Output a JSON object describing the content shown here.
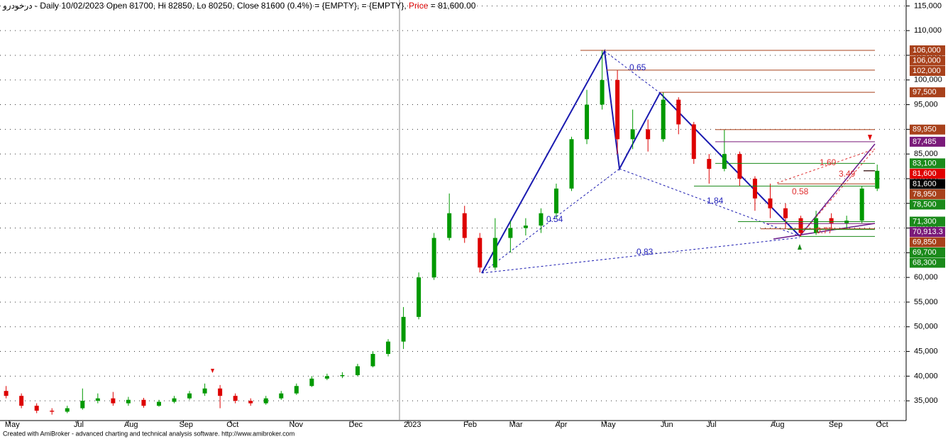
{
  "chart_data": {
    "type": "candlestick",
    "title": "درخودرو - Daily 10/02/2023 Open 81700, Hi 82850, Lo 80250, Close 81600 (0.4%)    = {EMPTY},    = {EMPTY}, ",
    "price_label": "Price",
    "price_text": " = 81,600.00",
    "footer": "Created with AmiBroker - advanced charting and technical analysis software. http://www.amibroker.com",
    "up_color": "#009900",
    "down_color": "#dd0000",
    "grid": true,
    "xlim": [
      0,
      296
    ],
    "ylim": [
      31000,
      116200
    ],
    "xticks": [
      {
        "value": 3,
        "label": "May"
      },
      {
        "value": 25.5,
        "label": "Jul"
      },
      {
        "value": 42,
        "label": "Aug"
      },
      {
        "value": 60,
        "label": "Sep"
      },
      {
        "value": 75.5,
        "label": "Oct"
      },
      {
        "value": 96,
        "label": "Nov"
      },
      {
        "value": 115.5,
        "label": "Dec"
      },
      {
        "value": 133.5,
        "label": "2023"
      },
      {
        "value": 153,
        "label": "Feb"
      },
      {
        "value": 168,
        "label": "Mar"
      },
      {
        "value": 183,
        "label": "Apr"
      },
      {
        "value": 198,
        "label": "May"
      },
      {
        "value": 217.5,
        "label": "Jun"
      },
      {
        "value": 232.5,
        "label": "Jul"
      },
      {
        "value": 253.5,
        "label": "Aug"
      },
      {
        "value": 272.5,
        "label": "Sep"
      },
      {
        "value": 288,
        "label": "Oct"
      }
    ],
    "yticks": [
      {
        "value": 35000,
        "label": "35,000"
      },
      {
        "value": 40000,
        "label": "40,000"
      },
      {
        "value": 45000,
        "label": "45,000"
      },
      {
        "value": 50000,
        "label": "50,000"
      },
      {
        "value": 55000,
        "label": "55,000"
      },
      {
        "value": 60000,
        "label": "60,000"
      },
      {
        "value": 65000,
        "label": "65,000"
      },
      {
        "value": 70000,
        "label": "70,000"
      },
      {
        "value": 75000,
        "label": "75,000"
      },
      {
        "value": 80000,
        "label": "80,000"
      },
      {
        "value": 85000,
        "label": "85,000"
      },
      {
        "value": 90000,
        "label": "90,000"
      },
      {
        "value": 95000,
        "label": "95,000"
      },
      {
        "value": 100000,
        "label": "100,000"
      },
      {
        "value": 105000,
        "label": "105,000"
      },
      {
        "value": 110000,
        "label": "110,000"
      },
      {
        "value": 115000,
        "label": "115,000"
      }
    ],
    "x": [
      2,
      7,
      12,
      17,
      22,
      27,
      32,
      37,
      42,
      47,
      52,
      57,
      62,
      67,
      72,
      77,
      82,
      87,
      92,
      97,
      102,
      107,
      112,
      117,
      122,
      127,
      132,
      137,
      142,
      147,
      152,
      157,
      162,
      167,
      172,
      177,
      182,
      187,
      192,
      197,
      202,
      207,
      212,
      217,
      222,
      227,
      232,
      237,
      242,
      247,
      252,
      257,
      262,
      267,
      272,
      277,
      282,
      287
    ],
    "open": [
      37000,
      36000,
      34000,
      33000,
      32800,
      33500,
      35000,
      35500,
      34500,
      35200,
      34000,
      34800,
      35500,
      36500,
      37500,
      36000,
      35000,
      34500,
      35500,
      36500,
      38000,
      39500,
      40000,
      40200,
      42000,
      44500,
      47000,
      52000,
      60000,
      68000,
      73000,
      68000,
      62000,
      68000,
      70000,
      70500,
      73000,
      78000,
      88000,
      95000,
      100000,
      88000,
      90000,
      88000,
      96000,
      91000,
      84000,
      82000,
      85000,
      80000,
      76000,
      74000,
      72000,
      69000,
      72000,
      71000,
      71500,
      78000
    ],
    "high": [
      38000,
      36500,
      34500,
      33500,
      34000,
      37500,
      36500,
      36800,
      35800,
      35600,
      35200,
      36000,
      37000,
      38500,
      38200,
      36500,
      35500,
      36000,
      37000,
      38500,
      40000,
      40500,
      40800,
      42500,
      45000,
      47500,
      54000,
      61000,
      69000,
      77000,
      74500,
      69000,
      72000,
      71500,
      72000,
      74000,
      79000,
      88500,
      98000,
      106000,
      102000,
      94000,
      92000,
      97500,
      96500,
      91500,
      85000,
      89950,
      85500,
      80500,
      79000,
      75000,
      72500,
      73500,
      73000,
      72500,
      78500,
      82850
    ],
    "low": [
      35500,
      33500,
      32500,
      32200,
      32500,
      33200,
      34500,
      34000,
      34000,
      33600,
      33800,
      34500,
      35200,
      36000,
      33500,
      34500,
      34000,
      34200,
      35200,
      36200,
      37800,
      39200,
      39600,
      40000,
      41800,
      44000,
      45500,
      51500,
      59500,
      67500,
      67000,
      61000,
      61500,
      65000,
      68500,
      69000,
      72000,
      77500,
      87000,
      94000,
      85000,
      86000,
      85500,
      87500,
      89000,
      83000,
      79000,
      81500,
      78500,
      73500,
      72000,
      70000,
      68300,
      68600,
      69700,
      69850,
      71000,
      77500
    ],
    "close": [
      36000,
      34000,
      33000,
      32800,
      33500,
      35000,
      35500,
      34500,
      35200,
      34000,
      34800,
      35500,
      36500,
      37500,
      36000,
      35000,
      34500,
      35500,
      36500,
      38000,
      39500,
      40000,
      40200,
      42000,
      44500,
      47000,
      52000,
      60000,
      68000,
      73000,
      68000,
      62000,
      68000,
      70000,
      70500,
      73000,
      78000,
      88000,
      95000,
      100000,
      88000,
      90000,
      88000,
      96000,
      91000,
      84000,
      82000,
      85000,
      80000,
      76000,
      74000,
      72000,
      69000,
      72000,
      71000,
      71500,
      78000,
      81600
    ],
    "levels": [
      {
        "value": 106000,
        "label": "106,000",
        "color": "#a8411b"
      },
      {
        "value": 106000,
        "label": "106,000",
        "color": "#a8411b"
      },
      {
        "value": 102000,
        "label": "102,000",
        "color": "#a8411b"
      },
      {
        "value": 97500,
        "label": "97,500",
        "color": "#a8411b"
      },
      {
        "value": 89950,
        "label": "89,950",
        "color": "#a8411b"
      },
      {
        "value": 87485,
        "label": "87,485",
        "color": "#7a1a7a"
      },
      {
        "value": 83100,
        "label": "83,100",
        "color": "#1a8a1a"
      },
      {
        "value": 81600,
        "label": "81,600",
        "color": "#e00000"
      },
      {
        "value": 81600,
        "label": "81,600",
        "color": "#000000"
      },
      {
        "value": 78950,
        "label": "78,950",
        "color": "#a8411b"
      },
      {
        "value": 78500,
        "label": "78,500",
        "color": "#1a8a1a"
      },
      {
        "value": 71300,
        "label": "71,300",
        "color": "#1a8a1a"
      },
      {
        "value": 70913.3,
        "label": "70,913.3",
        "color": "#7a1a7a"
      },
      {
        "value": 69850,
        "label": "69,850",
        "color": "#a8411b"
      },
      {
        "value": 69700,
        "label": "69,700",
        "color": "#1a8a1a"
      },
      {
        "value": 68300,
        "label": "68,300",
        "color": "#1a8a1a"
      }
    ],
    "annotations": [
      {
        "text": "0.65",
        "color": "#2222bb"
      },
      {
        "text": "1.84",
        "color": "#2222bb"
      },
      {
        "text": "0.54",
        "color": "#2222bb"
      },
      {
        "text": "0.83",
        "color": "#2222bb"
      },
      {
        "text": "1.60",
        "color": "#e03030"
      },
      {
        "text": "3.49",
        "color": "#e03030"
      },
      {
        "text": "0.58",
        "color": "#e03030"
      },
      {
        "text": "0.77",
        "color": "#e03030"
      }
    ]
  }
}
